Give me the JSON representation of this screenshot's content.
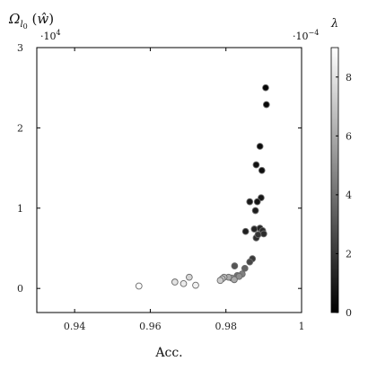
{
  "chart_data": {
    "type": "scatter",
    "xlabel": "Acc.",
    "ylabel": "Ω_{l_0}(ŵ)",
    "y_multiplier": "·10^4",
    "xlim": [
      0.93,
      1.0
    ],
    "ylim": [
      -0.3,
      3.0
    ],
    "x_ticks": [
      0.94,
      0.96,
      0.98,
      1.0
    ],
    "x_tick_labels": [
      "0.94",
      "0.96",
      "0.98",
      "1"
    ],
    "y_ticks": [
      0,
      1,
      2,
      3
    ],
    "y_tick_labels": [
      "0",
      "1",
      "2",
      "3"
    ],
    "colorbar": {
      "label": "λ",
      "multiplier": "·10^-4",
      "range": [
        0,
        9
      ],
      "ticks": [
        0,
        2,
        4,
        6,
        8
      ],
      "tick_labels": [
        "0",
        "2",
        "4",
        "6",
        "8"
      ],
      "colormap": "grayscale (0 = black, 9 = white)"
    },
    "points": [
      {
        "x": 0.9905,
        "y": 2.5,
        "c": 0.2
      },
      {
        "x": 0.9907,
        "y": 2.29,
        "c": 0.3
      },
      {
        "x": 0.989,
        "y": 1.77,
        "c": 0.4
      },
      {
        "x": 0.988,
        "y": 1.54,
        "c": 0.6
      },
      {
        "x": 0.9895,
        "y": 1.47,
        "c": 0.5
      },
      {
        "x": 0.9893,
        "y": 1.13,
        "c": 0.8
      },
      {
        "x": 0.9863,
        "y": 1.08,
        "c": 0.9
      },
      {
        "x": 0.9883,
        "y": 1.08,
        "c": 0.7
      },
      {
        "x": 0.9878,
        "y": 0.97,
        "c": 1.0
      },
      {
        "x": 0.9852,
        "y": 0.71,
        "c": 1.1
      },
      {
        "x": 0.9875,
        "y": 0.74,
        "c": 1.2
      },
      {
        "x": 0.989,
        "y": 0.75,
        "c": 1.3
      },
      {
        "x": 0.9897,
        "y": 0.72,
        "c": 1.4
      },
      {
        "x": 0.99,
        "y": 0.68,
        "c": 1.5
      },
      {
        "x": 0.988,
        "y": 0.63,
        "c": 1.6
      },
      {
        "x": 0.9885,
        "y": 0.67,
        "c": 1.8
      },
      {
        "x": 0.987,
        "y": 0.37,
        "c": 2.0
      },
      {
        "x": 0.9863,
        "y": 0.33,
        "c": 2.5
      },
      {
        "x": 0.9823,
        "y": 0.28,
        "c": 3.0
      },
      {
        "x": 0.985,
        "y": 0.25,
        "c": 3.5
      },
      {
        "x": 0.983,
        "y": 0.16,
        "c": 4.0
      },
      {
        "x": 0.9843,
        "y": 0.18,
        "c": 4.5
      },
      {
        "x": 0.9835,
        "y": 0.15,
        "c": 5.0
      },
      {
        "x": 0.9815,
        "y": 0.13,
        "c": 5.5
      },
      {
        "x": 0.9807,
        "y": 0.14,
        "c": 6.0
      },
      {
        "x": 0.9822,
        "y": 0.11,
        "c": 6.0
      },
      {
        "x": 0.9795,
        "y": 0.14,
        "c": 6.5
      },
      {
        "x": 0.979,
        "y": 0.12,
        "c": 7.0
      },
      {
        "x": 0.9785,
        "y": 0.1,
        "c": 7.2
      },
      {
        "x": 0.9703,
        "y": 0.14,
        "c": 7.5
      },
      {
        "x": 0.9665,
        "y": 0.08,
        "c": 8.0
      },
      {
        "x": 0.9688,
        "y": 0.06,
        "c": 8.3
      },
      {
        "x": 0.972,
        "y": 0.04,
        "c": 8.5
      },
      {
        "x": 0.957,
        "y": 0.03,
        "c": 9.0
      }
    ]
  }
}
